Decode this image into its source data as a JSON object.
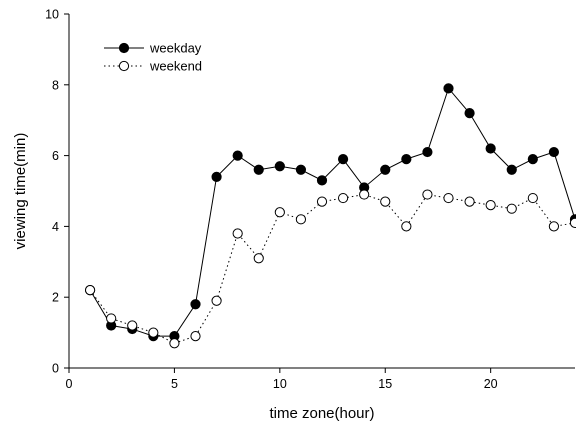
{
  "chart_data": {
    "type": "line",
    "xlabel": "time zone(hour)",
    "ylabel": "viewing time(min)",
    "xlim": [
      0,
      24
    ],
    "ylim": [
      0,
      10
    ],
    "xticks": [
      0,
      5,
      10,
      15,
      20
    ],
    "yticks": [
      0,
      2,
      4,
      6,
      8,
      10
    ],
    "grid": false,
    "legend_position": "top-left",
    "x": [
      1,
      2,
      3,
      4,
      5,
      6,
      7,
      8,
      9,
      10,
      11,
      12,
      13,
      14,
      15,
      16,
      17,
      18,
      19,
      20,
      21,
      22,
      23,
      24
    ],
    "series": [
      {
        "name": "weekday",
        "marker": "filled-circle",
        "line_style": "solid",
        "color": "#000000",
        "values": [
          2.2,
          1.2,
          1.1,
          0.9,
          0.9,
          1.8,
          5.4,
          6.0,
          5.6,
          5.7,
          5.6,
          5.3,
          5.9,
          5.1,
          5.6,
          5.9,
          6.1,
          7.9,
          7.2,
          6.2,
          5.6,
          5.9,
          6.1,
          4.2
        ]
      },
      {
        "name": "weekend",
        "marker": "open-circle",
        "line_style": "dotted",
        "color": "#000000",
        "values": [
          2.2,
          1.4,
          1.2,
          1.0,
          0.7,
          0.9,
          1.9,
          3.8,
          3.1,
          4.4,
          4.2,
          4.7,
          4.8,
          4.9,
          4.7,
          4.0,
          4.9,
          4.8,
          4.7,
          4.6,
          4.5,
          4.8,
          4.0,
          4.1
        ]
      }
    ]
  }
}
